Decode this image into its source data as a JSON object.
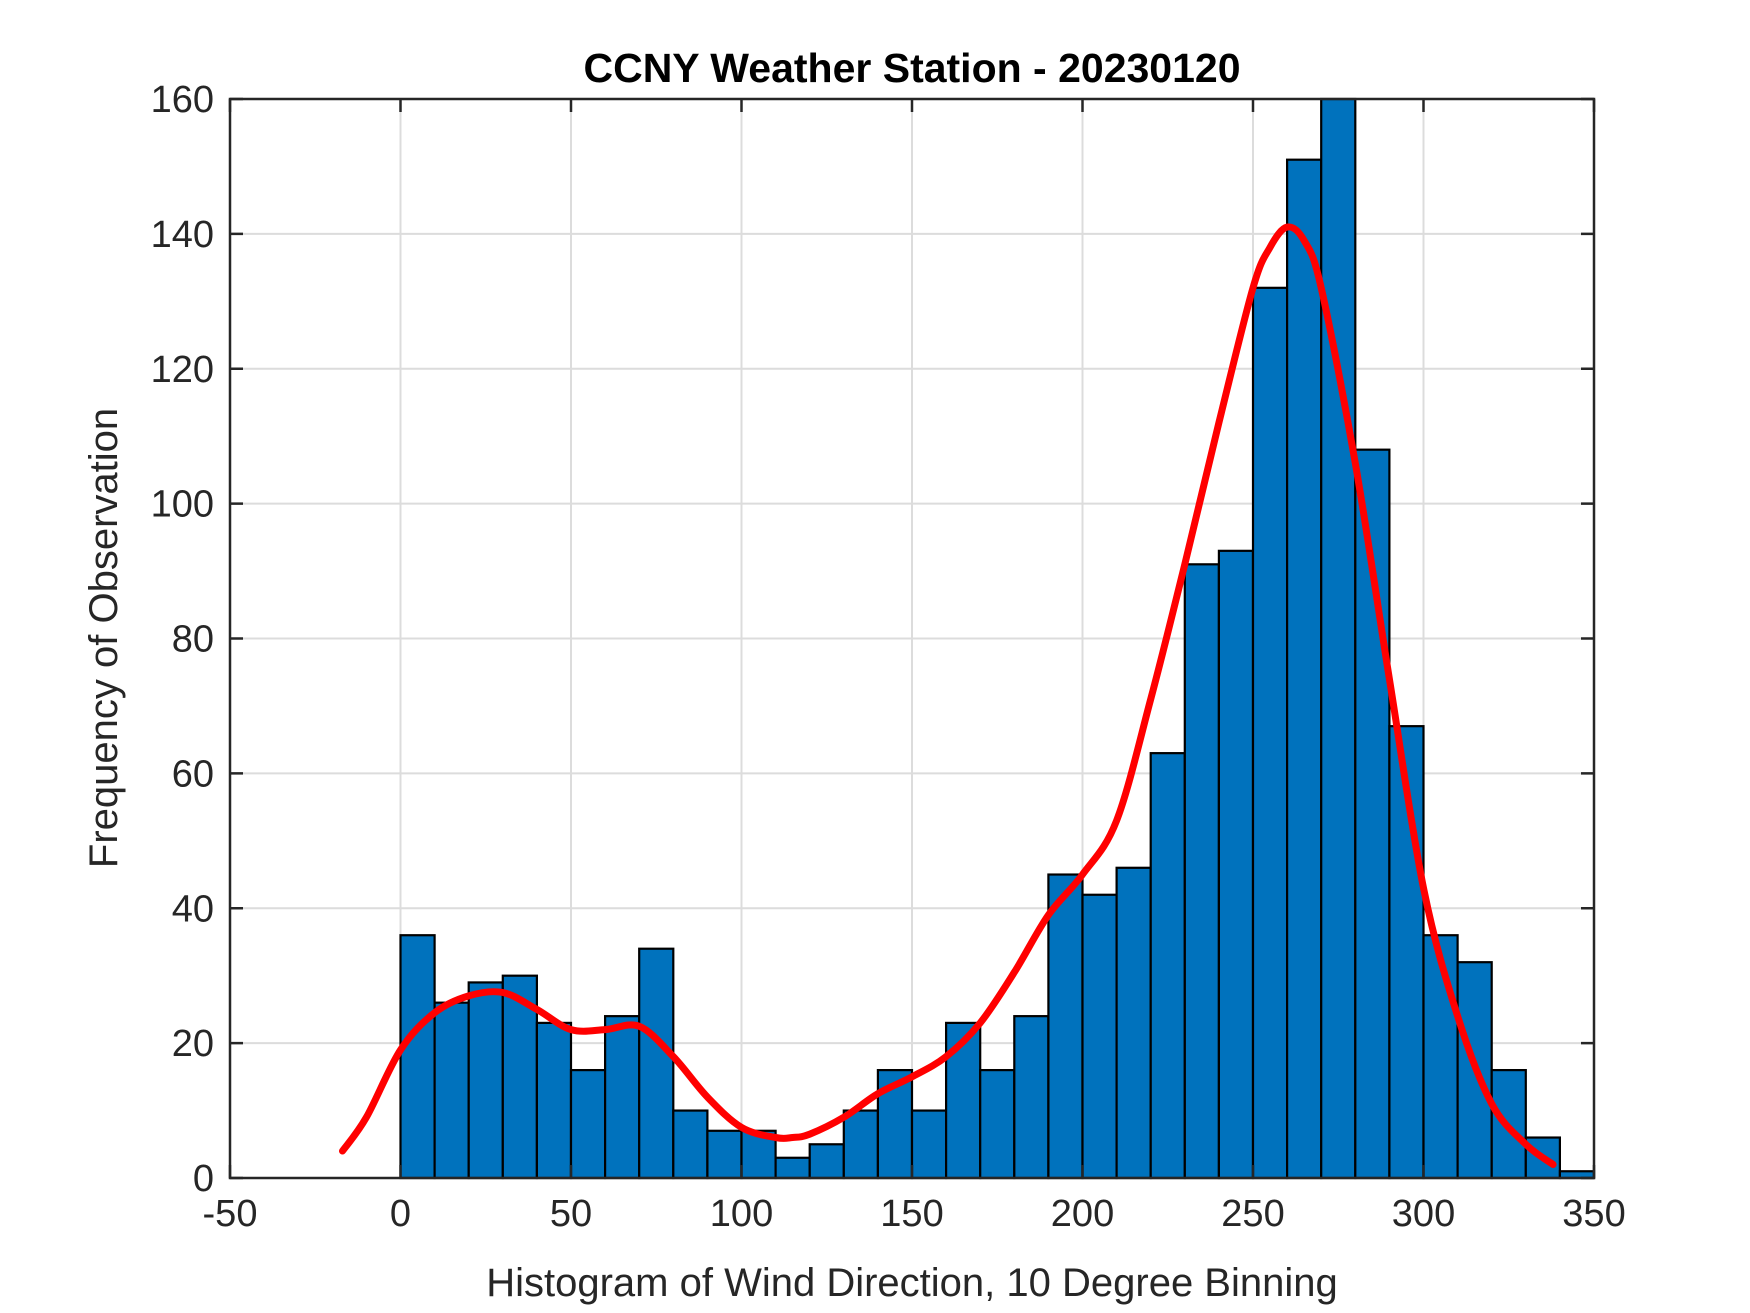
{
  "chart_data": {
    "type": "bar",
    "title": "CCNY Weather Station - 20230120",
    "xlabel": "Histogram of Wind Direction, 10 Degree Binning",
    "ylabel": "Frequency of Observation",
    "xlim": [
      -50,
      350
    ],
    "ylim": [
      0,
      160
    ],
    "xticks": [
      -50,
      0,
      50,
      100,
      150,
      200,
      250,
      300,
      350
    ],
    "yticks": [
      0,
      20,
      40,
      60,
      80,
      100,
      120,
      140,
      160
    ],
    "grid": true,
    "bin_edges": [
      0,
      10,
      20,
      30,
      40,
      50,
      60,
      70,
      80,
      90,
      100,
      110,
      120,
      130,
      140,
      150,
      160,
      170,
      180,
      190,
      200,
      210,
      220,
      230,
      240,
      250,
      260,
      270,
      280,
      290,
      300,
      310,
      320,
      330,
      340,
      350
    ],
    "values": [
      36,
      26,
      29,
      30,
      23,
      16,
      24,
      34,
      10,
      7,
      7,
      3,
      5,
      10,
      16,
      10,
      23,
      16,
      24,
      45,
      42,
      46,
      63,
      91,
      93,
      132,
      151,
      164,
      108,
      67,
      36,
      32,
      16,
      6,
      1
    ],
    "bar_color": "#0072BD",
    "fit_curve": {
      "name": "density estimate",
      "color": "#FF0000",
      "x": [
        -17,
        -10,
        0,
        10,
        20,
        30,
        40,
        50,
        60,
        70,
        80,
        90,
        100,
        110,
        115,
        120,
        130,
        140,
        150,
        160,
        170,
        180,
        190,
        200,
        210,
        220,
        230,
        240,
        250,
        255,
        260,
        265,
        270,
        280,
        290,
        300,
        310,
        320,
        330,
        338
      ],
      "y": [
        4,
        9,
        19,
        24.5,
        27,
        27.5,
        25,
        22,
        22,
        22.5,
        18,
        12,
        7.5,
        6,
        6,
        6.5,
        9,
        12.5,
        15,
        18,
        23,
        30.5,
        39,
        45,
        53,
        71,
        91,
        112,
        132,
        138,
        141,
        139,
        132,
        106,
        74,
        43,
        24,
        11,
        5,
        2
      ]
    }
  }
}
